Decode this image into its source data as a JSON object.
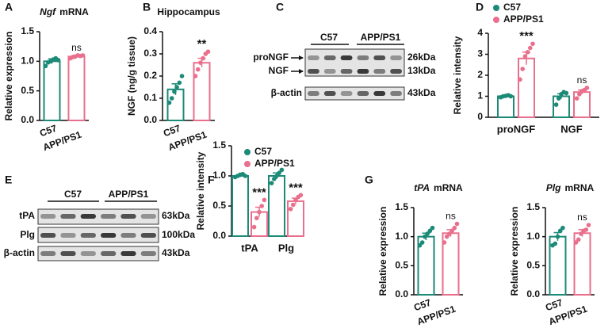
{
  "letters": [
    "A",
    "B",
    "C",
    "D",
    "E",
    "F",
    "G"
  ],
  "chart_data": [
    {
      "type": "bar",
      "gene": "Ngf",
      "title": "mRNA",
      "ylabel": "Relative expression",
      "categories": [
        "C57",
        "APP/PS1"
      ],
      "values": [
        1.0,
        1.08
      ],
      "errors": [
        0.04,
        0.02
      ],
      "points": [
        [
          0.92,
          0.98,
          1.0,
          1.03,
          1.05,
          1.02
        ],
        [
          1.05,
          1.07,
          1.08,
          1.1,
          1.09,
          1.1
        ]
      ],
      "colors": [
        "#1b8a77",
        "#e96f8c"
      ],
      "value_annotations": [
        null,
        "ns"
      ],
      "ylim": [
        0,
        1.5
      ],
      "yticks": [
        {
          "value": 0,
          "label": "0.0"
        },
        0.5,
        {
          "value": 1,
          "label": "1.0"
        },
        1.5
      ]
    },
    {
      "type": "bar",
      "title": "Hippocampus",
      "ylabel": "NGF (ng/g tissue)",
      "categories": [
        "C57",
        "APP/PS1"
      ],
      "values": [
        0.14,
        0.26
      ],
      "errors": [
        0.025,
        0.02
      ],
      "points": [
        [
          0.08,
          0.1,
          0.13,
          0.15,
          0.17,
          0.2
        ],
        [
          0.2,
          0.23,
          0.26,
          0.28,
          0.3,
          0.31
        ]
      ],
      "colors": [
        "#1b8a77",
        "#e96f8c"
      ],
      "value_annotations": [
        null,
        "**"
      ],
      "ylim": [
        0,
        0.4
      ],
      "yticks": [
        {
          "value": 0,
          "label": "0.0"
        },
        0.1,
        0.2,
        0.3,
        0.4
      ]
    },
    {
      "type": "grouped",
      "ylabel": "Relative intensity",
      "categories": [
        "proNGF",
        "NGF"
      ],
      "series": [
        {
          "name": "C57",
          "color": "#1b8a77",
          "values": [
            1.0,
            1.0
          ],
          "errors": [
            0.04,
            0.12
          ],
          "points": [
            [
              0.95,
              1.0,
              1.02,
              1.05,
              1.0
            ],
            [
              0.6,
              0.9,
              1.1,
              1.2,
              1.15
            ]
          ],
          "annotations": [
            null,
            null
          ]
        },
        {
          "name": "APP/PS1",
          "color": "#e96f8c",
          "values": [
            2.8,
            1.2
          ],
          "errors": [
            0.3,
            0.1
          ],
          "points": [
            [
              1.8,
              2.3,
              2.9,
              3.1,
              3.3,
              3.5
            ],
            [
              0.9,
              1.1,
              1.25,
              1.3,
              1.4
            ]
          ],
          "annotations": [
            "***",
            "ns"
          ]
        }
      ],
      "ylim": [
        0,
        4
      ],
      "yticks": [
        0,
        1,
        2,
        3,
        4
      ]
    },
    {
      "type": "grouped",
      "ylabel": "Relative intensity",
      "categories": [
        "tPA",
        "Plg"
      ],
      "series": [
        {
          "name": "C57",
          "color": "#1b8a77",
          "values": [
            1.0,
            1.0
          ],
          "errors": [
            0.02,
            0.05
          ],
          "points": [
            [
              0.98,
              1.0,
              1.02,
              1.03,
              1.0
            ],
            [
              0.88,
              0.95,
              1.0,
              1.05,
              1.1
            ]
          ],
          "annotations": [
            null,
            null
          ]
        },
        {
          "name": "APP/PS1",
          "color": "#e96f8c",
          "values": [
            0.4,
            0.58
          ],
          "errors": [
            0.08,
            0.05
          ],
          "points": [
            [
              0.15,
              0.3,
              0.4,
              0.5,
              0.6
            ],
            [
              0.45,
              0.52,
              0.6,
              0.65,
              0.68
            ]
          ],
          "annotations": [
            "***",
            "***"
          ]
        }
      ],
      "ylim": [
        0,
        1.5
      ],
      "yticks": [
        {
          "value": 0,
          "label": "0.0"
        },
        0.5,
        {
          "value": 1,
          "label": "1.0"
        },
        1.5
      ]
    },
    {
      "type": "bar",
      "gene": "tPA",
      "title": "mRNA",
      "ylabel": "Relative expression",
      "categories": [
        "C57",
        "APP/PS1"
      ],
      "values": [
        1.0,
        1.06
      ],
      "errors": [
        0.06,
        0.06
      ],
      "points": [
        [
          0.85,
          0.9,
          1.0,
          1.05,
          1.1,
          1.15
        ],
        [
          0.9,
          1.0,
          1.05,
          1.1,
          1.15,
          1.22
        ]
      ],
      "colors": [
        "#1b8a77",
        "#e96f8c"
      ],
      "value_annotations": [
        null,
        "ns"
      ],
      "ylim": [
        0,
        1.5
      ],
      "yticks": [
        {
          "value": 0,
          "label": "0.0"
        },
        0.5,
        {
          "value": 1,
          "label": "1.0"
        },
        1.5
      ]
    },
    {
      "type": "bar",
      "gene": "Plg",
      "title": "mRNA",
      "ylabel": "Relative expression",
      "categories": [
        "C57",
        "APP/PS1"
      ],
      "values": [
        1.0,
        1.06
      ],
      "errors": [
        0.07,
        0.06
      ],
      "points": [
        [
          0.85,
          0.88,
          1.0,
          1.1,
          1.15
        ],
        [
          0.9,
          0.95,
          1.05,
          1.1,
          1.12,
          1.2
        ]
      ],
      "colors": [
        "#1b8a77",
        "#e96f8c"
      ],
      "value_annotations": [
        null,
        "ns"
      ],
      "ylim": [
        0,
        1.5
      ],
      "yticks": [
        {
          "value": 0,
          "label": "0.0"
        },
        0.5,
        {
          "value": 1,
          "label": "1.0"
        },
        1.5
      ]
    }
  ],
  "blots": [
    {
      "lanes": [
        "C57",
        "APP/PS1"
      ],
      "bands": [
        "proNGF",
        "NGF",
        "β-actin"
      ],
      "sizes": [
        "26kDa",
        "13kDa",
        "43kDa"
      ]
    },
    {
      "lanes": [
        "C57",
        "APP/PS1"
      ],
      "bands": [
        "tPA",
        "Plg",
        "β-actin"
      ],
      "sizes": [
        "63kDa",
        "100kDa",
        "43kDa"
      ]
    }
  ]
}
